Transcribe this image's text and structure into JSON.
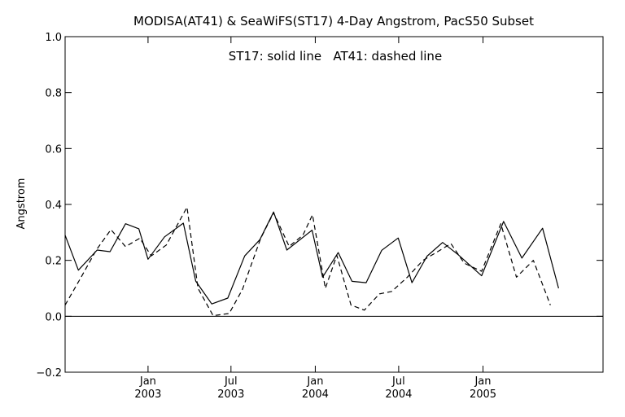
{
  "chart_data": {
    "type": "line",
    "title": "MODISA(AT41) & SeaWiFS(ST17) 4-Day Angstrom, PacS50 Subset",
    "annotation": "ST17: solid line   AT41: dashed line",
    "ylabel": "Angstrom",
    "xlabel": "",
    "xlim": [
      "2002-07-04",
      "2005-09-20"
    ],
    "ylim": [
      -0.2,
      1.0
    ],
    "yticks": [
      {
        "value": 1.0,
        "label": "1.0"
      },
      {
        "value": 0.8,
        "label": "0.8"
      },
      {
        "value": 0.6,
        "label": "0.6"
      },
      {
        "value": 0.4,
        "label": "0.4"
      },
      {
        "value": 0.2,
        "label": "0.2"
      },
      {
        "value": 0.0,
        "label": "0.0"
      },
      {
        "value": -0.2,
        "label": "−0.2"
      }
    ],
    "xticks": [
      {
        "date": "2003-01-01",
        "label1": "Jan",
        "label2": "2003"
      },
      {
        "date": "2003-07-01",
        "label1": "Jul",
        "label2": "2003"
      },
      {
        "date": "2004-01-01",
        "label1": "Jan",
        "label2": "2004"
      },
      {
        "date": "2004-07-01",
        "label1": "Jul",
        "label2": "2004"
      },
      {
        "date": "2005-01-01",
        "label1": "Jan",
        "label2": "2005"
      }
    ],
    "zero_line": 0.0,
    "colors": {
      "line": "#000000",
      "background": "#ffffff"
    },
    "series": [
      {
        "name": "ST17",
        "style": "solid",
        "points": [
          [
            "2002-07-04",
            0.29
          ],
          [
            "2002-08-02",
            0.165
          ],
          [
            "2002-09-12",
            0.237
          ],
          [
            "2002-10-10",
            0.231
          ],
          [
            "2002-11-13",
            0.331
          ],
          [
            "2002-12-12",
            0.313
          ],
          [
            "2003-01-01",
            0.204
          ],
          [
            "2003-02-06",
            0.284
          ],
          [
            "2003-03-19",
            0.333
          ],
          [
            "2003-04-15",
            0.126
          ],
          [
            "2003-05-20",
            0.044
          ],
          [
            "2003-06-24",
            0.065
          ],
          [
            "2003-07-31",
            0.216
          ],
          [
            "2003-09-02",
            0.274
          ],
          [
            "2003-10-02",
            0.373
          ],
          [
            "2003-10-31",
            0.237
          ],
          [
            "2003-12-25",
            0.308
          ],
          [
            "2004-01-17",
            0.14
          ],
          [
            "2004-02-20",
            0.228
          ],
          [
            "2004-03-21",
            0.125
          ],
          [
            "2004-04-21",
            0.12
          ],
          [
            "2004-05-25",
            0.236
          ],
          [
            "2004-06-30",
            0.28
          ],
          [
            "2004-07-30",
            0.12
          ],
          [
            "2004-09-01",
            0.215
          ],
          [
            "2004-10-05",
            0.264
          ],
          [
            "2004-11-08",
            0.22
          ],
          [
            "2004-12-29",
            0.145
          ],
          [
            "2005-02-15",
            0.339
          ],
          [
            "2005-03-27",
            0.208
          ],
          [
            "2005-05-11",
            0.315
          ],
          [
            "2005-06-15",
            0.1
          ]
        ]
      },
      {
        "name": "AT41",
        "style": "dashed",
        "points": [
          [
            "2002-07-04",
            0.04
          ],
          [
            "2002-08-08",
            0.14
          ],
          [
            "2002-09-10",
            0.237
          ],
          [
            "2002-10-12",
            0.31
          ],
          [
            "2002-11-13",
            0.249
          ],
          [
            "2002-12-14",
            0.279
          ],
          [
            "2003-01-08",
            0.216
          ],
          [
            "2003-02-10",
            0.255
          ],
          [
            "2003-03-27",
            0.39
          ],
          [
            "2003-04-20",
            0.1
          ],
          [
            "2003-05-23",
            0.002
          ],
          [
            "2003-06-27",
            0.01
          ],
          [
            "2003-07-26",
            0.096
          ],
          [
            "2003-09-04",
            0.279
          ],
          [
            "2003-10-02",
            0.37
          ],
          [
            "2003-11-05",
            0.25
          ],
          [
            "2003-12-05",
            0.29
          ],
          [
            "2003-12-26",
            0.363
          ],
          [
            "2004-01-23",
            0.1
          ],
          [
            "2004-02-17",
            0.218
          ],
          [
            "2004-03-19",
            0.04
          ],
          [
            "2004-04-17",
            0.022
          ],
          [
            "2004-05-20",
            0.08
          ],
          [
            "2004-06-16",
            0.089
          ],
          [
            "2004-07-20",
            0.14
          ],
          [
            "2004-08-23",
            0.2
          ],
          [
            "2004-09-24",
            0.231
          ],
          [
            "2004-10-23",
            0.26
          ],
          [
            "2004-11-21",
            0.19
          ],
          [
            "2004-12-29",
            0.161
          ],
          [
            "2005-02-09",
            0.331
          ],
          [
            "2005-03-15",
            0.14
          ],
          [
            "2005-04-21",
            0.2
          ],
          [
            "2005-05-28",
            0.04
          ]
        ]
      }
    ]
  }
}
